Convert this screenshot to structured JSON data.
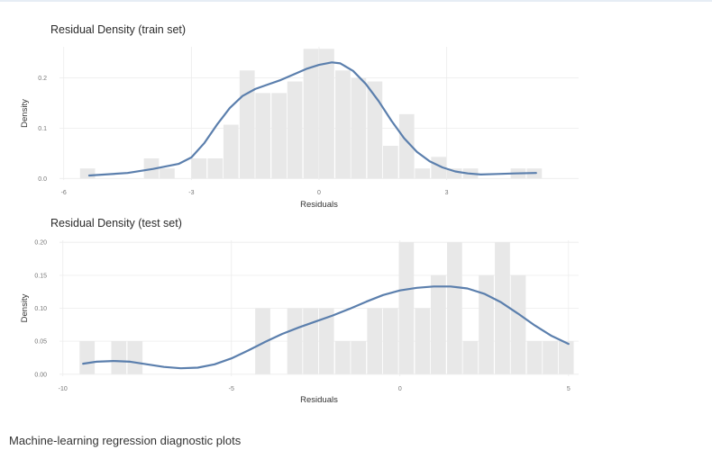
{
  "caption": "Machine-learning regression diagnostic plots",
  "colors": {
    "bar": "#e8e8e8",
    "density": "#5b7fad",
    "grid": "#ececec"
  },
  "chart_data": [
    {
      "type": "histogram",
      "title": "Residual Density (train set)",
      "xlabel": "Residuals",
      "ylabel": "Density",
      "xlim": [
        -6.1,
        6.1
      ],
      "ylim": [
        -0.003,
        0.262
      ],
      "x_ticks": [
        {
          "value": -6,
          "label": "-6"
        },
        {
          "value": -3,
          "label": "-3"
        },
        {
          "value": 0,
          "label": "0"
        },
        {
          "value": 3,
          "label": "3"
        }
      ],
      "y_ticks": [
        {
          "value": 0.0,
          "label": "0.0"
        },
        {
          "value": 0.1,
          "label": "0.1"
        },
        {
          "value": 0.2,
          "label": "0.2"
        }
      ],
      "bin_width": 0.375,
      "bins": [
        {
          "x": -5.44,
          "y": 0.02
        },
        {
          "x": -5.07,
          "y": 0.0
        },
        {
          "x": -4.69,
          "y": 0.0
        },
        {
          "x": -4.32,
          "y": 0.0
        },
        {
          "x": -3.94,
          "y": 0.04
        },
        {
          "x": -3.57,
          "y": 0.02
        },
        {
          "x": -3.19,
          "y": 0.0
        },
        {
          "x": -2.82,
          "y": 0.04
        },
        {
          "x": -2.44,
          "y": 0.04
        },
        {
          "x": -2.07,
          "y": 0.107
        },
        {
          "x": -1.69,
          "y": 0.215
        },
        {
          "x": -1.32,
          "y": 0.17
        },
        {
          "x": -0.94,
          "y": 0.17
        },
        {
          "x": -0.57,
          "y": 0.193
        },
        {
          "x": -0.19,
          "y": 0.258
        },
        {
          "x": 0.18,
          "y": 0.258
        },
        {
          "x": 0.56,
          "y": 0.215
        },
        {
          "x": 0.93,
          "y": 0.2
        },
        {
          "x": 1.31,
          "y": 0.193
        },
        {
          "x": 1.68,
          "y": 0.065
        },
        {
          "x": 2.06,
          "y": 0.128
        },
        {
          "x": 2.43,
          "y": 0.02
        },
        {
          "x": 2.81,
          "y": 0.043
        },
        {
          "x": 3.18,
          "y": 0.02
        },
        {
          "x": 3.56,
          "y": 0.02
        },
        {
          "x": 3.93,
          "y": 0.0
        },
        {
          "x": 4.31,
          "y": 0.0
        },
        {
          "x": 4.68,
          "y": 0.02
        },
        {
          "x": 5.06,
          "y": 0.02
        }
      ],
      "density": {
        "x": [
          -5.4,
          -4.5,
          -3.9,
          -3.3,
          -3.0,
          -2.7,
          -2.4,
          -2.1,
          -1.8,
          -1.5,
          -1.2,
          -0.9,
          -0.6,
          -0.3,
          0.0,
          0.3,
          0.5,
          0.8,
          1.1,
          1.4,
          1.7,
          2.0,
          2.3,
          2.6,
          2.9,
          3.2,
          3.5,
          3.8,
          4.2,
          4.6,
          5.1
        ],
        "y": [
          0.006,
          0.011,
          0.019,
          0.029,
          0.042,
          0.07,
          0.107,
          0.14,
          0.164,
          0.178,
          0.187,
          0.196,
          0.207,
          0.218,
          0.226,
          0.231,
          0.229,
          0.214,
          0.188,
          0.154,
          0.115,
          0.08,
          0.053,
          0.034,
          0.022,
          0.014,
          0.01,
          0.008,
          0.009,
          0.01,
          0.011
        ]
      }
    },
    {
      "type": "histogram",
      "title": "Residual Density (test set)",
      "xlabel": "Residuals",
      "ylabel": "Density",
      "xlim": [
        -10.1,
        5.3
      ],
      "ylim": [
        -0.003,
        0.203
      ],
      "x_ticks": [
        {
          "value": -10,
          "label": "-10"
        },
        {
          "value": -5,
          "label": "-5"
        },
        {
          "value": 0,
          "label": "0"
        },
        {
          "value": 5,
          "label": "5"
        }
      ],
      "y_ticks": [
        {
          "value": 0.0,
          "label": "0.00"
        },
        {
          "value": 0.05,
          "label": "0.05"
        },
        {
          "value": 0.1,
          "label": "0.10"
        },
        {
          "value": 0.15,
          "label": "0.15"
        },
        {
          "value": 0.2,
          "label": "0.20"
        }
      ],
      "bin_width": 0.474,
      "bins": [
        {
          "x": -9.28,
          "y": 0.05
        },
        {
          "x": -8.81,
          "y": 0.0
        },
        {
          "x": -8.34,
          "y": 0.05
        },
        {
          "x": -7.86,
          "y": 0.05
        },
        {
          "x": -7.39,
          "y": 0.0
        },
        {
          "x": -6.91,
          "y": 0.0
        },
        {
          "x": -6.44,
          "y": 0.0
        },
        {
          "x": -5.97,
          "y": 0.0
        },
        {
          "x": -5.49,
          "y": 0.0
        },
        {
          "x": -5.02,
          "y": 0.0
        },
        {
          "x": -4.54,
          "y": 0.0
        },
        {
          "x": -4.07,
          "y": 0.1
        },
        {
          "x": -3.6,
          "y": 0.0
        },
        {
          "x": -3.12,
          "y": 0.1
        },
        {
          "x": -2.65,
          "y": 0.1
        },
        {
          "x": -2.18,
          "y": 0.1
        },
        {
          "x": -1.7,
          "y": 0.05
        },
        {
          "x": -1.23,
          "y": 0.05
        },
        {
          "x": -0.75,
          "y": 0.1
        },
        {
          "x": -0.28,
          "y": 0.1
        },
        {
          "x": 0.19,
          "y": 0.2
        },
        {
          "x": 0.67,
          "y": 0.1
        },
        {
          "x": 1.14,
          "y": 0.15
        },
        {
          "x": 1.62,
          "y": 0.2
        },
        {
          "x": 2.09,
          "y": 0.05
        },
        {
          "x": 2.56,
          "y": 0.15
        },
        {
          "x": 3.04,
          "y": 0.2
        },
        {
          "x": 3.51,
          "y": 0.15
        },
        {
          "x": 3.99,
          "y": 0.05
        },
        {
          "x": 4.46,
          "y": 0.05
        },
        {
          "x": 4.93,
          "y": 0.05
        }
      ],
      "density": {
        "x": [
          -9.4,
          -9.0,
          -8.5,
          -8.0,
          -7.5,
          -7.0,
          -6.5,
          -6.0,
          -5.5,
          -5.0,
          -4.5,
          -4.0,
          -3.5,
          -3.0,
          -2.5,
          -2.0,
          -1.5,
          -1.0,
          -0.5,
          0.0,
          0.5,
          1.0,
          1.5,
          2.0,
          2.5,
          3.0,
          3.5,
          4.0,
          4.5,
          5.0
        ],
        "y": [
          0.016,
          0.019,
          0.02,
          0.019,
          0.015,
          0.011,
          0.009,
          0.01,
          0.015,
          0.024,
          0.036,
          0.049,
          0.061,
          0.071,
          0.08,
          0.089,
          0.099,
          0.11,
          0.12,
          0.127,
          0.131,
          0.133,
          0.133,
          0.13,
          0.122,
          0.109,
          0.092,
          0.074,
          0.058,
          0.046
        ]
      }
    }
  ]
}
